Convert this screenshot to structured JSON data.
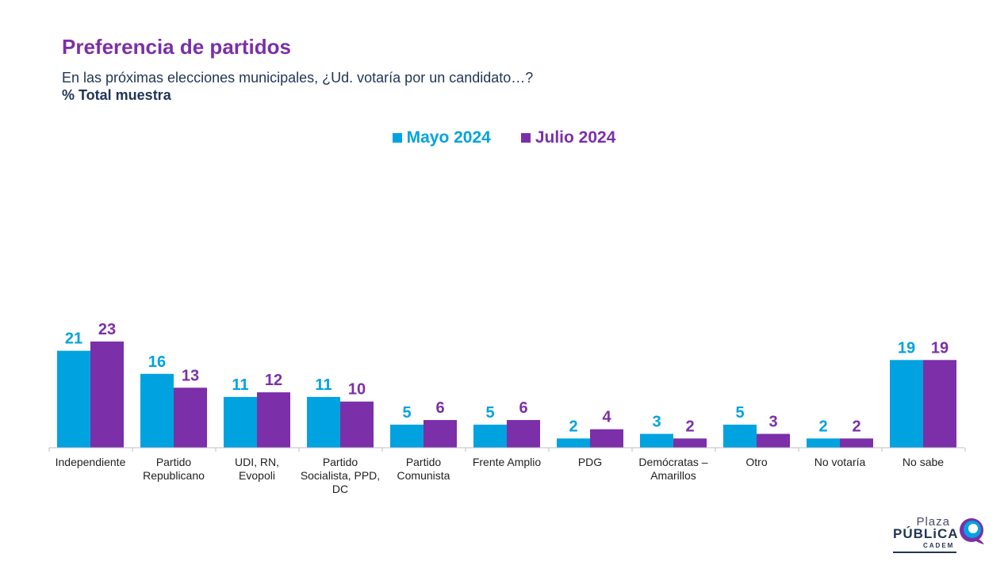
{
  "header": {
    "title": "Preferencia de partidos",
    "subtitle": "En las próximas elecciones municipales, ¿Ud. votaría por un candidato…?",
    "note": "% Total muestra"
  },
  "colors": {
    "series_1": "#00a3e0",
    "series_2": "#7b2fa8",
    "axis": "#bfbfbf",
    "text": "#1f1f1f"
  },
  "logo": {
    "top": "Plaza",
    "main": "PÚBLiCA",
    "bottom": "CADEM"
  },
  "chart_data": {
    "type": "bar",
    "categories": [
      [
        "Independiente"
      ],
      [
        "Partido",
        "Republicano"
      ],
      [
        "UDI, RN,",
        "Evopoli"
      ],
      [
        "Partido",
        "Socialista, PPD,",
        "DC"
      ],
      [
        "Partido",
        "Comunista"
      ],
      [
        "Frente Amplio"
      ],
      [
        "PDG"
      ],
      [
        "Demócratas –",
        "Amarillos"
      ],
      [
        "Otro"
      ],
      [
        "No votaría"
      ],
      [
        "No sabe"
      ]
    ],
    "series": [
      {
        "name": "Mayo 2024",
        "color": "#00a3e0",
        "values": [
          21,
          16,
          11,
          11,
          5,
          5,
          2,
          3,
          5,
          2,
          19
        ]
      },
      {
        "name": "Julio 2024",
        "color": "#7b2fa8",
        "values": [
          23,
          13,
          12,
          10,
          6,
          6,
          4,
          2,
          3,
          2,
          19
        ]
      }
    ],
    "ylim": [
      0,
      23
    ],
    "grid": false,
    "legend_position": "top-center",
    "data_labels": true
  }
}
